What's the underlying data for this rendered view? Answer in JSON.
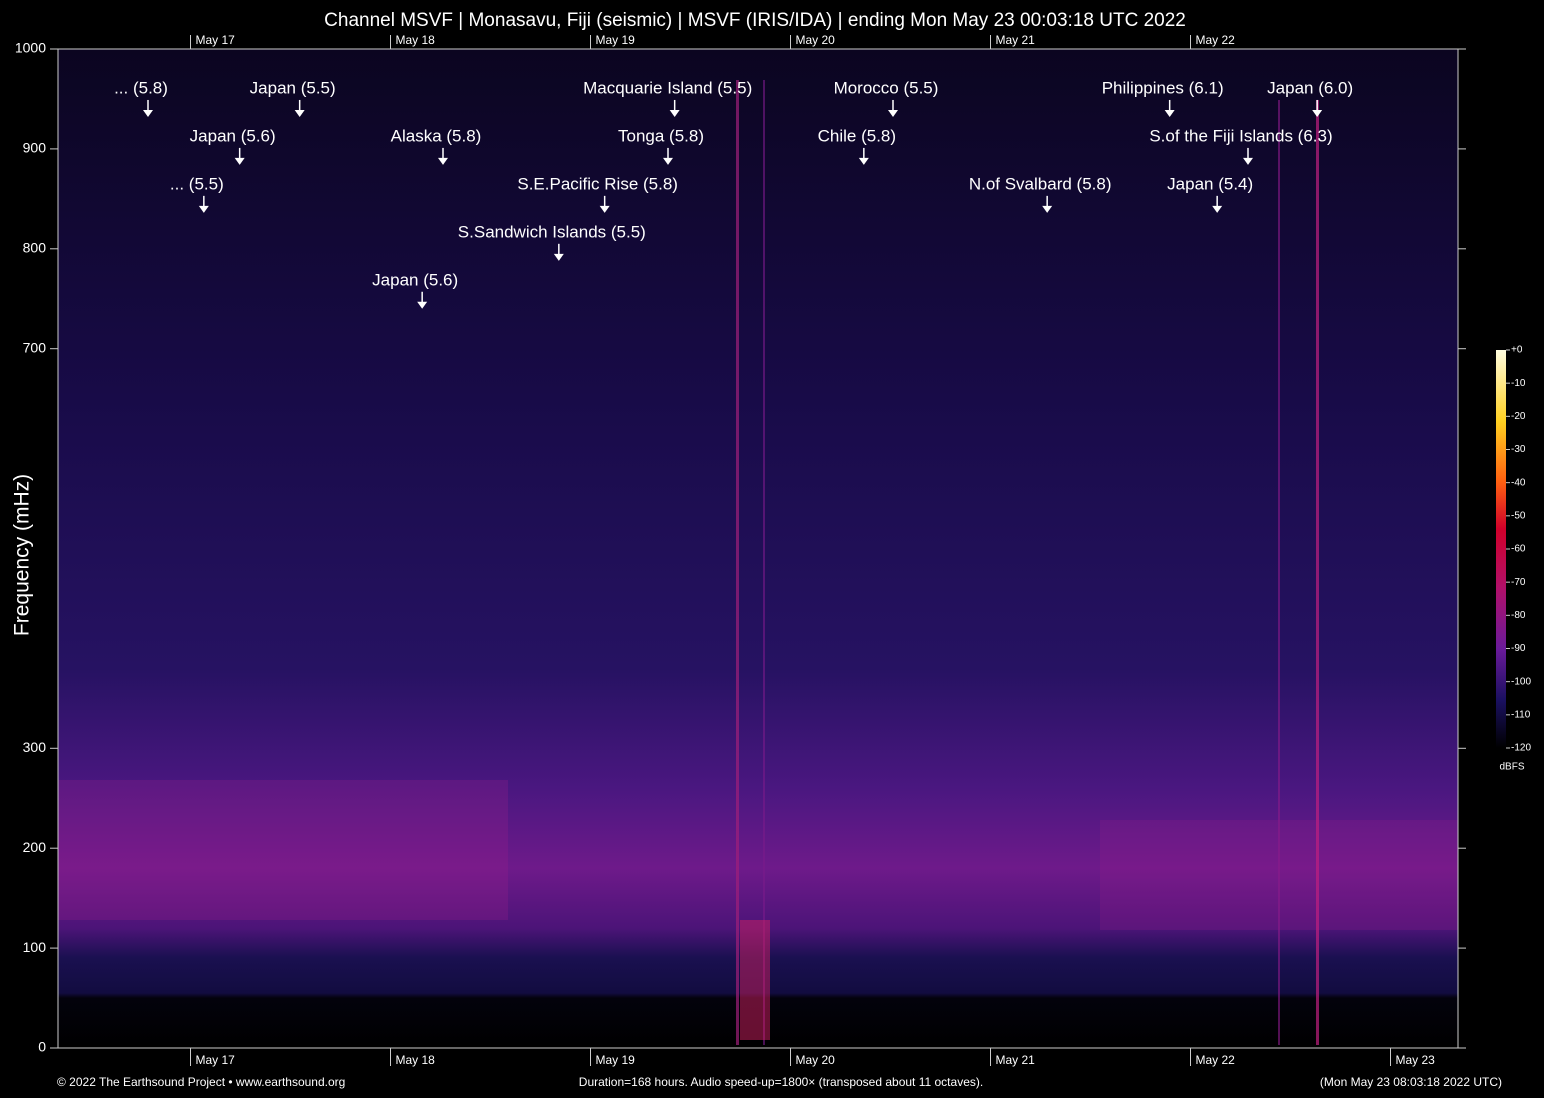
{
  "chart_data": {
    "type": "spectrogram",
    "title": "Channel MSVF | Monasavu, Fiji (seismic) | MSVF (IRIS/IDA) | ending Mon May 23 00:03:18 UTC 2022",
    "ylabel": "Frequency (mHz)",
    "xlim": [
      0,
      168
    ],
    "ylim": [
      0,
      1000
    ],
    "yticks": [
      0,
      100,
      200,
      300,
      700,
      800,
      900,
      1000
    ],
    "xticks": [
      {
        "value": 15.9,
        "label": "May 17"
      },
      {
        "value": 39.9,
        "label": "May 18"
      },
      {
        "value": 63.9,
        "label": "May 19"
      },
      {
        "value": 87.9,
        "label": "May 20"
      },
      {
        "value": 111.9,
        "label": "May 21"
      },
      {
        "value": 135.9,
        "label": "May 22"
      },
      {
        "value": 159.9,
        "label": "May 23"
      }
    ],
    "x2ticks": [
      {
        "value": 15.9,
        "label": "May 17"
      },
      {
        "value": 39.9,
        "label": "May 18"
      },
      {
        "value": 63.9,
        "label": "May 19"
      },
      {
        "value": 87.9,
        "label": "May 20"
      },
      {
        "value": 111.9,
        "label": "May 21"
      },
      {
        "value": 135.9,
        "label": "May 22"
      }
    ],
    "colorbar": {
      "label": "dBFS",
      "lim": [
        -120,
        0
      ],
      "ticks": [
        {
          "value": 0,
          "label": "+0"
        },
        -10,
        -20,
        -30,
        -40,
        -50,
        -60,
        -70,
        -80,
        -90,
        -100,
        -110,
        -120
      ]
    },
    "annotations": [
      {
        "label": "... (5.8)",
        "x": 10.8,
        "y": 960
      },
      {
        "label": "Japan (5.5)",
        "x": 29.0,
        "y": 960
      },
      {
        "label": "Macquarie Island (5.5)",
        "x": 74.0,
        "y": 960
      },
      {
        "label": "Morocco (5.5)",
        "x": 100.2,
        "y": 960
      },
      {
        "label": "Philippines (6.1)",
        "x": 133.4,
        "y": 960
      },
      {
        "label": "Japan (6.0)",
        "x": 151.1,
        "y": 960
      },
      {
        "label": "Japan (5.6)",
        "x": 21.8,
        "y": 912
      },
      {
        "label": "Alaska (5.8)",
        "x": 46.2,
        "y": 912
      },
      {
        "label": "Tonga (5.8)",
        "x": 73.2,
        "y": 912
      },
      {
        "label": "Chile (5.8)",
        "x": 96.7,
        "y": 912
      },
      {
        "label": "S.of the Fiji Islands (6.3)",
        "x": 142.8,
        "y": 912
      },
      {
        "label": "... (5.5)",
        "x": 17.5,
        "y": 864
      },
      {
        "label": "S.E.Pacific Rise (5.8)",
        "x": 65.6,
        "y": 864
      },
      {
        "label": "N.of Svalbard (5.8)",
        "x": 118.7,
        "y": 864
      },
      {
        "label": "Japan (5.4)",
        "x": 139.1,
        "y": 864
      },
      {
        "label": "S.Sandwich Islands (5.5)",
        "x": 60.1,
        "y": 816
      },
      {
        "label": "Japan (5.6)",
        "x": 43.7,
        "y": 768
      }
    ],
    "footer": {
      "left": "© 2022 The Earthsound Project • www.earthsound.org",
      "center": "Duration=168 hours. Audio speed-up=1800× (transposed about 11 octaves).",
      "right": "(Mon May 23 08:03:18 2022 UTC)"
    }
  }
}
